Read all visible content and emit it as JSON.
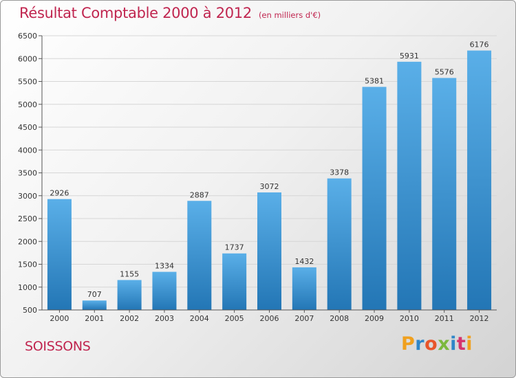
{
  "title": "Résultat Comptable 2000 à 2012",
  "subtitle": "(en milliers d'€)",
  "city": "SOISSONS",
  "brand": {
    "letters": [
      "P",
      "r",
      "o",
      "x",
      "i",
      "t",
      "i"
    ],
    "colors": [
      "#f0a01e",
      "#2f86c8",
      "#e8552a",
      "#7cb83e",
      "#2f86c8",
      "#d6336c",
      "#f0a01e"
    ]
  },
  "colors": {
    "accent": "#c0254f",
    "bar_top": "#5aafe8",
    "bar_bottom": "#2376b5",
    "grid": "#d6d6d6"
  },
  "chart_data": {
    "type": "bar",
    "categories": [
      "2000",
      "2001",
      "2002",
      "2003",
      "2004",
      "2005",
      "2006",
      "2007",
      "2008",
      "2009",
      "2010",
      "2011",
      "2012"
    ],
    "values": [
      2926,
      707,
      1155,
      1334,
      2887,
      1737,
      3072,
      1432,
      3378,
      5381,
      5931,
      5576,
      6176
    ],
    "title": "Résultat Comptable 2000 à 2012",
    "xlabel": "",
    "ylabel": "",
    "ylim": [
      500,
      6500
    ],
    "yticks": [
      500,
      1000,
      1500,
      2000,
      2500,
      3000,
      3500,
      4000,
      4500,
      5000,
      5500,
      6000,
      6500
    ],
    "grid": true,
    "data_labels": true
  }
}
